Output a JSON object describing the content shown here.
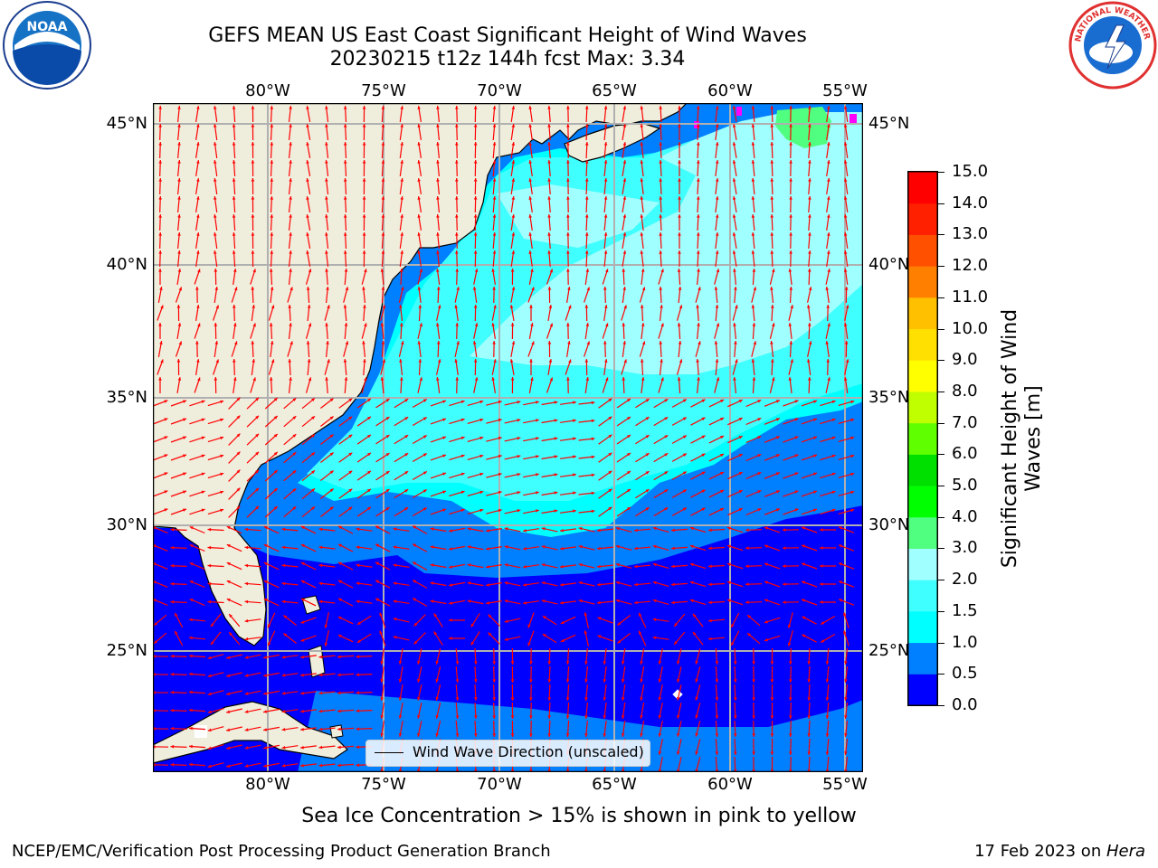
{
  "title": {
    "line1": "GEFS MEAN US East Coast Significant Height of Wind Waves",
    "line2": "20230215 t12z 144h fcst   Max: 3.34"
  },
  "map": {
    "lon_labels": [
      "80°W",
      "75°W",
      "70°W",
      "65°W",
      "60°W",
      "55°W"
    ],
    "lat_labels": [
      "45°N",
      "40°N",
      "35°N",
      "30°N",
      "25°N"
    ],
    "extent": {
      "lon": [
        -85,
        -54.3
      ],
      "lat": [
        20.5,
        46
      ]
    },
    "colors": {
      "land": "#efeddc",
      "gridline": "#b0b0b0",
      "arrow": "#ff0000"
    }
  },
  "colorbar": {
    "label": "Significant Height of Wind Waves [m]",
    "ticks": [
      "0.0",
      "0.5",
      "1.0",
      "1.5",
      "2.0",
      "3.0",
      "4.0",
      "5.0",
      "6.0",
      "7.0",
      "8.0",
      "9.0",
      "10.0",
      "11.0",
      "12.0",
      "13.0",
      "14.0",
      "15.0"
    ],
    "colors": [
      "#0000ff",
      "#0080ff",
      "#00ffff",
      "#40ffff",
      "#a0ffff",
      "#50ff80",
      "#00ff00",
      "#00e000",
      "#60ff00",
      "#c0ff00",
      "#ffff00",
      "#ffe000",
      "#ffc000",
      "#ff8000",
      "#ff5000",
      "#ff2000",
      "#ff0000"
    ]
  },
  "legend": {
    "label": "Wind Wave Direction (unscaled)"
  },
  "note": "Sea Ice Concentration > 15% is shown in pink to yellow",
  "footer": {
    "left": "NCEP/EMC/Verification Post Processing Product Generation Branch",
    "right_prefix": "17 Feb 2023 on ",
    "right_host": "Hera"
  },
  "logos": {
    "noaa": "NOAA",
    "nws": "NATIONAL WEATHER SERVICE"
  }
}
